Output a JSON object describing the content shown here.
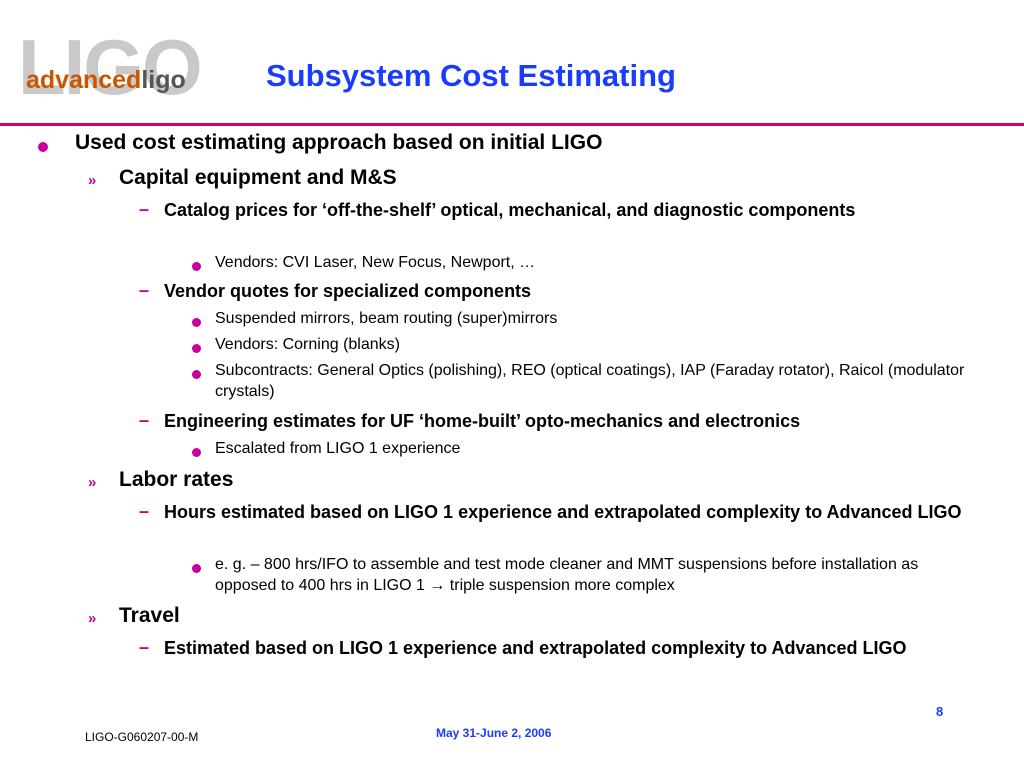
{
  "logo": {
    "background_text": "LIGO",
    "word_advanced": "advanced",
    "word_ligo": "ligo"
  },
  "slide": {
    "title": "Subsystem Cost Estimating",
    "bullets": {
      "b1": "Used cost estimating approach based on initial LIGO",
      "b1_1": "Capital equipment and M&S",
      "b1_1_1": "Catalog prices for ‘off-the-shelf’ optical, mechanical, and diagnostic components",
      "b1_1_1_1": "Vendors: CVI Laser, New Focus, Newport, …",
      "b1_1_2": "Vendor quotes for specialized components",
      "b1_1_2_1": "Suspended mirrors, beam routing (super)mirrors",
      "b1_1_2_2": "Vendors: Corning (blanks)",
      "b1_1_2_3": "Subcontracts: General Optics (polishing), REO (optical coatings), IAP (Faraday rotator), Raicol (modulator crystals)",
      "b1_1_3": "Engineering estimates for UF ‘home-built’ opto-mechanics and electronics",
      "b1_1_3_1": "Escalated from LIGO 1 experience",
      "b1_2": "Labor rates",
      "b1_2_1": "Hours estimated based on LIGO 1 experience and extrapolated complexity to Advanced LIGO",
      "b1_2_1_1": "e. g. – 800 hrs/IFO to assemble and test mode cleaner and MMT suspensions before installation as opposed to 400 hrs in LIGO 1 → triple suspension more complex",
      "b1_3": "Travel",
      "b1_3_1": "Estimated based on LIGO 1 experience and extrapolated complexity to Advanced LIGO"
    },
    "markers": {
      "level2": "»",
      "level3": "–"
    }
  },
  "footer": {
    "doc_id": "LIGO-G060207-00-M",
    "date": "May 31-June 2, 2006",
    "page_number": "8"
  },
  "colors": {
    "title": "#1a3cff",
    "rule": "#d4007a",
    "bullet": "#c8009b",
    "logo_advanced": "#cc5500",
    "logo_ligo": "#555555",
    "logo_background": "#c9c9c9"
  }
}
